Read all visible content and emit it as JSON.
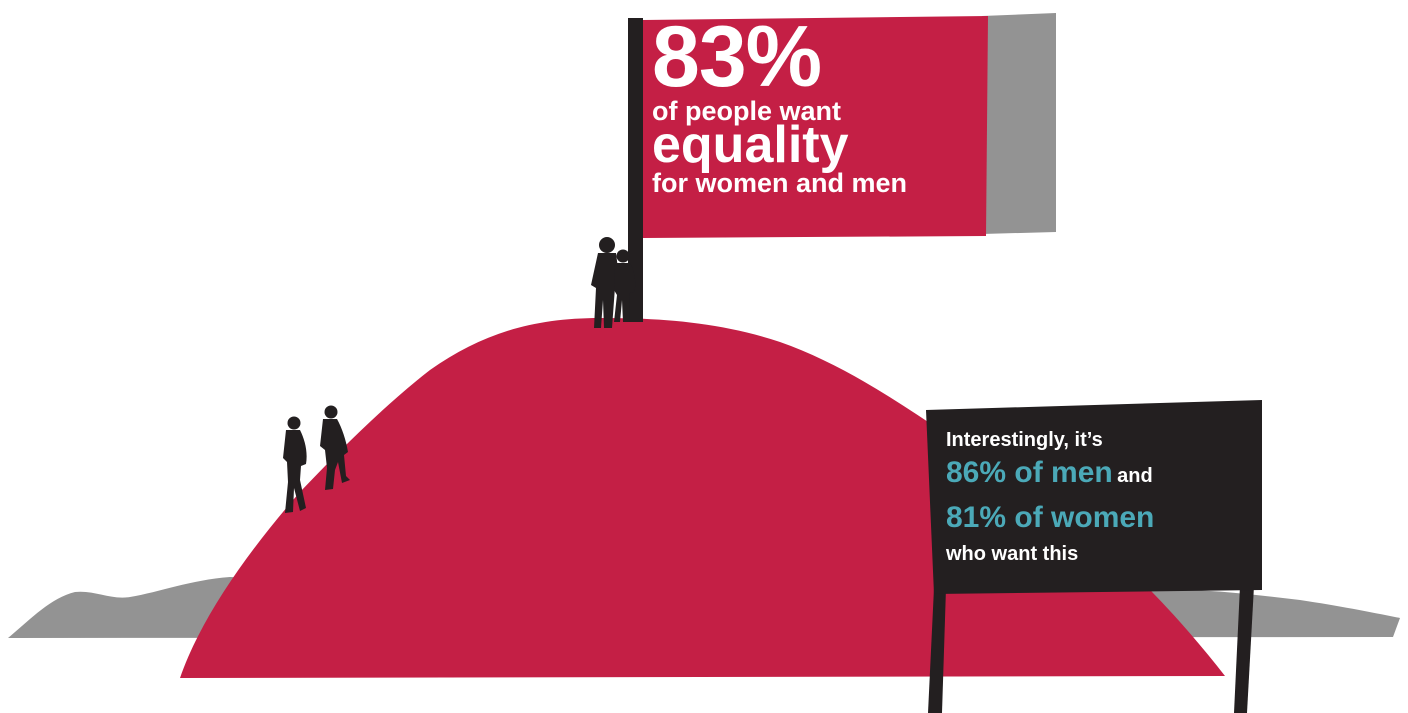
{
  "colors": {
    "hill": "#c41f45",
    "ground": "#939393",
    "flag": "#c41f45",
    "flag_shadow": "#939393",
    "pole": "#231f20",
    "sign_board": "#231f20",
    "highlight": "#4ba9b8",
    "text": "#ffffff"
  },
  "flag": {
    "percent": "83%",
    "line1": "of people want",
    "line2": "equality",
    "line3": "for women and men",
    "value": 83
  },
  "sign": {
    "intro": "Interestingly, it’s",
    "stat_men": "86% of men",
    "conjunction": "and",
    "stat_women": "81% of women",
    "outro": "who want this",
    "men_value": 86,
    "women_value": 81
  },
  "figures": {
    "couple": "couple-silhouette-icon",
    "climbers": "climbing-people-silhouette-icon"
  }
}
